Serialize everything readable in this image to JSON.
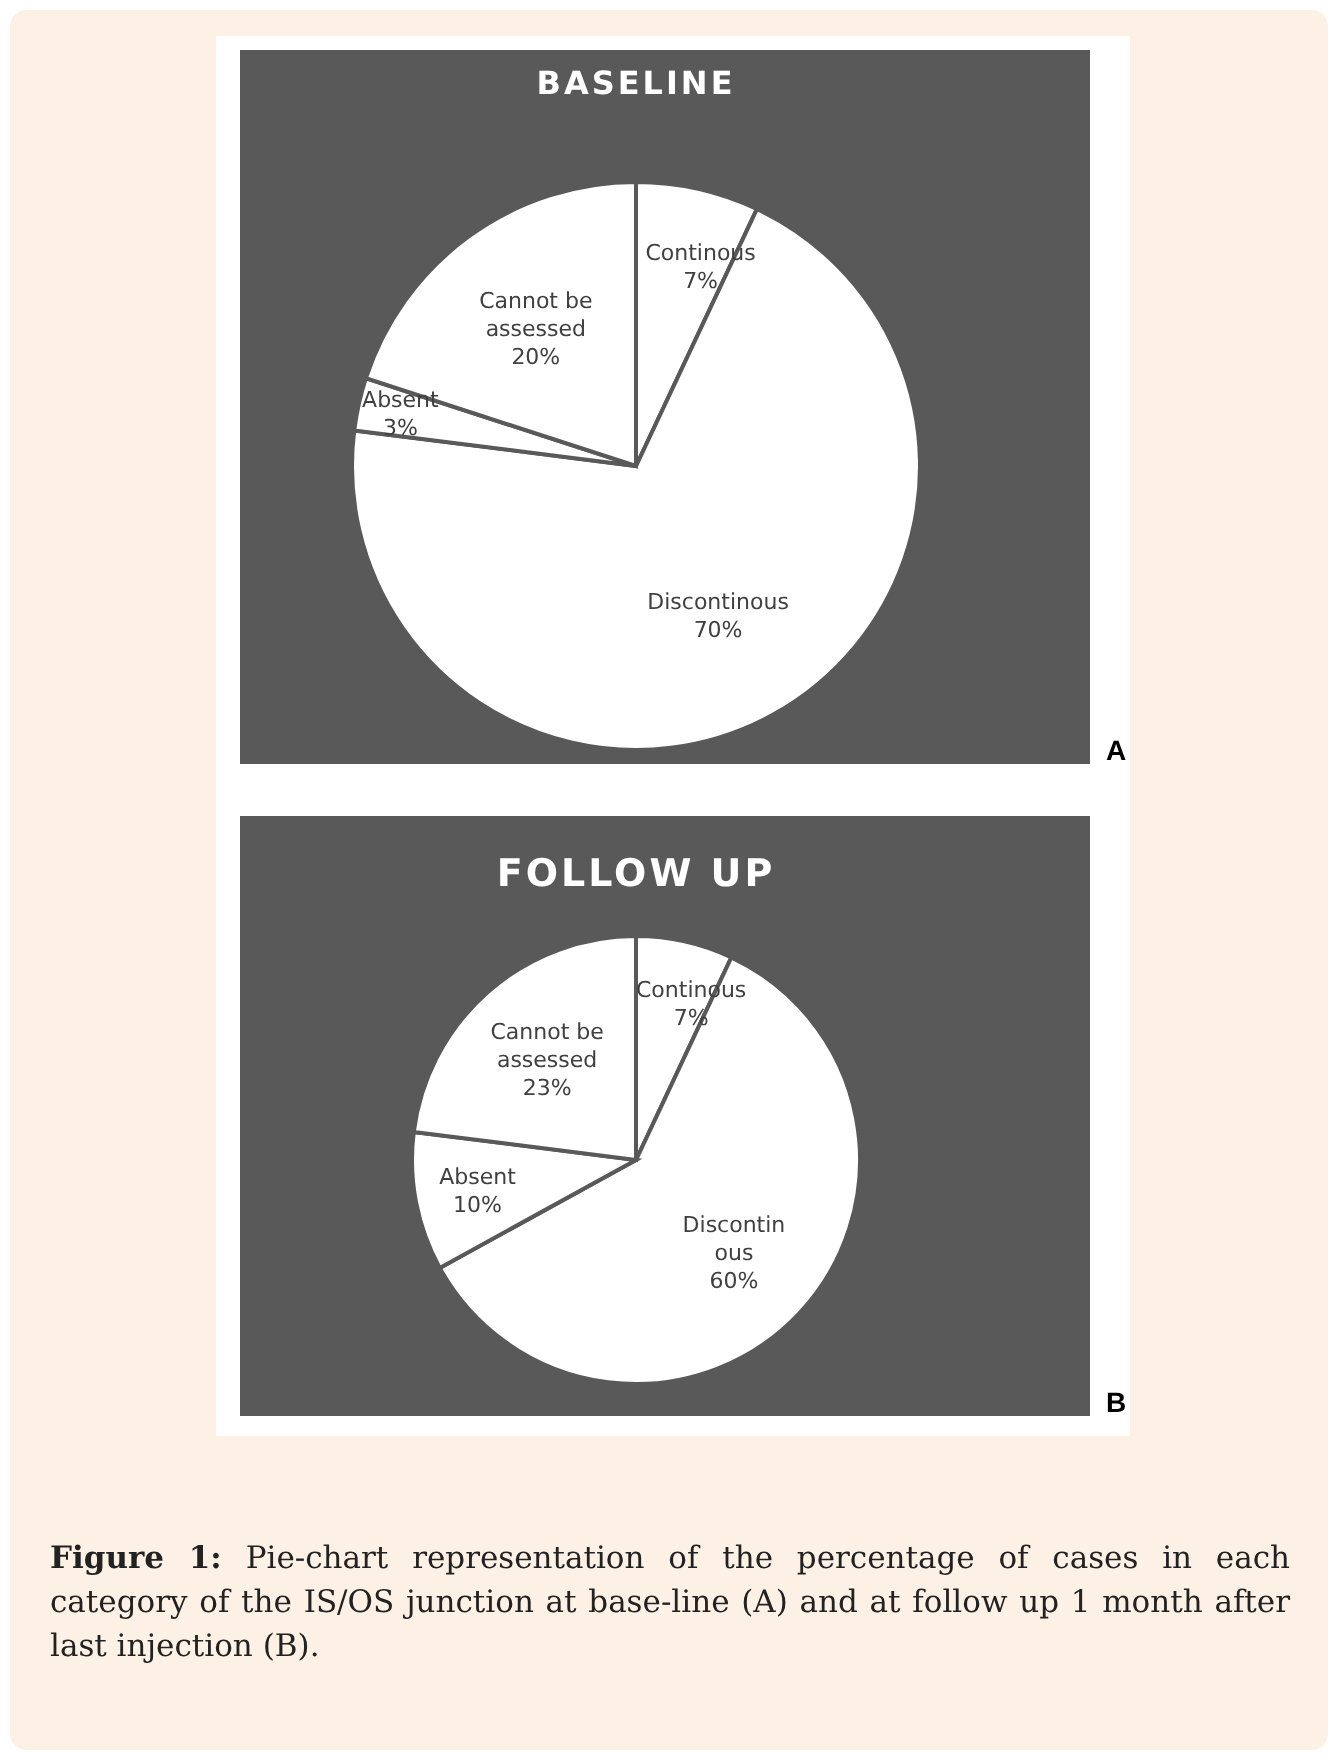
{
  "chart_data": [
    {
      "type": "pie",
      "title": "BASELINE",
      "categories": [
        "Continous",
        "Discontinous",
        "Absent",
        "Cannot be\nassessed"
      ],
      "values": [
        7,
        70,
        3,
        20
      ],
      "value_labels": [
        "7%",
        "70%",
        "3%",
        "20%"
      ],
      "colors": [
        "#ffffff",
        "#ffffff",
        "#ffffff",
        "#ffffff"
      ],
      "annotations": [
        "A"
      ]
    },
    {
      "type": "pie",
      "title": "FOLLOW UP",
      "categories": [
        "Continous",
        "Discontin\nous",
        "Absent",
        "Cannot be\nassessed"
      ],
      "values": [
        7,
        60,
        10,
        23
      ],
      "value_labels": [
        "7%",
        "60%",
        "10%",
        "23%"
      ],
      "colors": [
        "#ffffff",
        "#ffffff",
        "#ffffff",
        "#ffffff"
      ],
      "annotations": [
        "B",
        "Figure 1: Pie-chart representation of the percentage of cases in each category of the IS/OS junction at base-line (A) and at follow up 1 month after last injection (B)."
      ]
    }
  ]
}
